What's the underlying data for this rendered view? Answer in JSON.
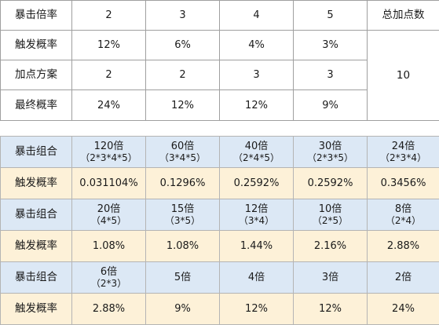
{
  "top_table": {
    "row_crit_multiplier": {
      "label": "暴击倍率",
      "values": [
        "2",
        "3",
        "4",
        "5"
      ],
      "total_header": "总加点数"
    },
    "row_trigger_rate": {
      "label": "触发概率",
      "values": [
        "12%",
        "6%",
        "4%",
        "3%"
      ]
    },
    "row_points": {
      "label": "加点方案",
      "values": [
        "2",
        "2",
        "3",
        "3"
      ],
      "total_value": "10"
    },
    "row_final_rate": {
      "label": "最终概率",
      "values": [
        "24%",
        "12%",
        "12%",
        "9%"
      ]
    }
  },
  "bottom_table": {
    "combo_label": "暴击组合",
    "rate_label": "触发概率",
    "group1": {
      "combos": [
        {
          "mult": "120倍",
          "sub": "（2*3*4*5）"
        },
        {
          "mult": "60倍",
          "sub": "（3*4*5）"
        },
        {
          "mult": "40倍",
          "sub": "（2*4*5）"
        },
        {
          "mult": "30倍",
          "sub": "（2*3*5）"
        },
        {
          "mult": "24倍",
          "sub": "（2*3*4）"
        }
      ],
      "rates": [
        "0.031104%",
        "0.1296%",
        "0.2592%",
        "0.2592%",
        "0.3456%"
      ]
    },
    "group2": {
      "combos": [
        {
          "mult": "20倍",
          "sub": "（4*5）"
        },
        {
          "mult": "15倍",
          "sub": "（3*5）"
        },
        {
          "mult": "12倍",
          "sub": "（3*4）"
        },
        {
          "mult": "10倍",
          "sub": "（2*5）"
        },
        {
          "mult": "8倍",
          "sub": "（2*4）"
        }
      ],
      "rates": [
        "1.08%",
        "1.08%",
        "1.44%",
        "2.16%",
        "2.88%"
      ]
    },
    "group3": {
      "combos": [
        {
          "mult": "6倍",
          "sub": "（2*3）"
        },
        {
          "mult": "5倍"
        },
        {
          "mult": "4倍"
        },
        {
          "mult": "3倍"
        },
        {
          "mult": "2倍"
        }
      ],
      "rates": [
        "2.88%",
        "9%",
        "12%",
        "12%",
        "24%"
      ]
    }
  }
}
